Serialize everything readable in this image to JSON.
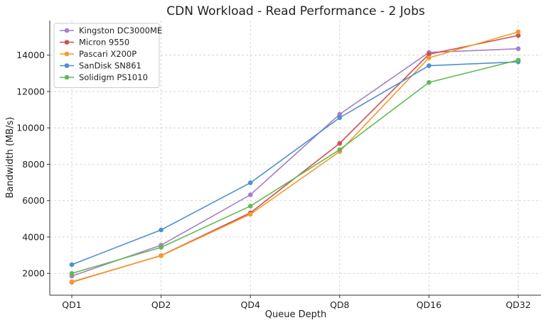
{
  "chart_data": {
    "type": "line",
    "title": "CDN Workload - Read Performance - 2 Jobs",
    "xlabel": "Queue Depth",
    "ylabel": "Bandwidth (MB/s)",
    "categories": [
      "QD1",
      "QD2",
      "QD4",
      "QD8",
      "QD16",
      "QD32"
    ],
    "ylim": [
      800,
      15900
    ],
    "yticks": [
      2000,
      4000,
      6000,
      8000,
      10000,
      12000,
      14000
    ],
    "grid": true,
    "legend_position": "top-left",
    "series": [
      {
        "name": "Kingston DC3000ME",
        "color": "#a67fc6",
        "values": [
          1850,
          3550,
          6320,
          10750,
          14150,
          14350
        ]
      },
      {
        "name": "Micron 9550",
        "color": "#cf5050",
        "values": [
          1520,
          2980,
          5330,
          9150,
          14050,
          15080
        ]
      },
      {
        "name": "Pascari X200P",
        "color": "#f59a2a",
        "values": [
          1540,
          2970,
          5250,
          8700,
          13850,
          15280
        ]
      },
      {
        "name": "SanDisk SN861",
        "color": "#4f90d0",
        "values": [
          2480,
          4390,
          6980,
          10560,
          13420,
          13630
        ]
      },
      {
        "name": "Solidigm PS1010",
        "color": "#5fba55",
        "values": [
          2000,
          3430,
          5700,
          8800,
          12500,
          13730
        ]
      }
    ]
  }
}
